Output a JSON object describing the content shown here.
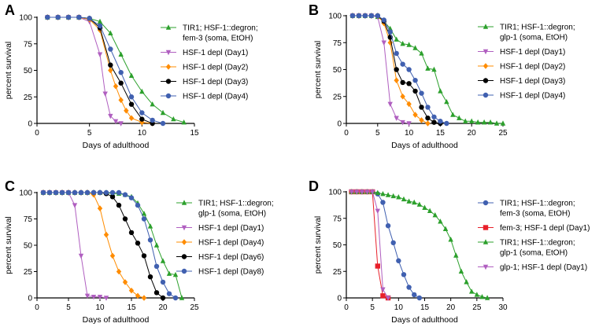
{
  "chart_data": [
    {
      "panel": "A",
      "type": "line",
      "xlabel": "Days of adulthood",
      "ylabel": "percent survival",
      "xlim": [
        0,
        15
      ],
      "ylim": [
        0,
        100
      ],
      "xticks": [
        0,
        5,
        10,
        15
      ],
      "yticks": [
        0,
        25,
        50,
        75,
        100
      ],
      "legend_position": "right",
      "series": [
        {
          "name": "TIR1; HSF-1::degron; fem-3 (soma, EtOH)",
          "legend_lines": [
            "TIR1; HSF-1::degron;",
            "fem-3 (soma, EtOH)"
          ],
          "color": "#2ca02c",
          "marker": "triangle-up",
          "x": [
            1,
            2,
            3,
            4,
            5,
            6,
            7,
            8,
            9,
            10,
            11,
            12,
            13,
            14
          ],
          "y": [
            100,
            100,
            100,
            100,
            99,
            96,
            85,
            65,
            45,
            30,
            18,
            10,
            4,
            1
          ]
        },
        {
          "name": "HSF-1 depl (Day1)",
          "legend_lines": [
            "HSF-1 depl (Day1)"
          ],
          "color": "#b05fc0",
          "marker": "triangle-down",
          "x": [
            1,
            2,
            3,
            4,
            5,
            6,
            6.5,
            7,
            7.5,
            8
          ],
          "y": [
            100,
            100,
            100,
            100,
            96,
            65,
            28,
            7,
            2,
            0
          ]
        },
        {
          "name": "HSF-1 depl (Day2)",
          "legend_lines": [
            "HSF-1 depl (Day2)"
          ],
          "color": "#ff8c00",
          "marker": "diamond",
          "x": [
            1,
            2,
            3,
            4,
            5,
            6,
            7,
            7.5,
            8,
            8.5,
            9,
            10,
            11
          ],
          "y": [
            100,
            100,
            100,
            100,
            98,
            88,
            50,
            35,
            22,
            12,
            5,
            1,
            0
          ]
        },
        {
          "name": "HSF-1 depl (Day3)",
          "legend_lines": [
            "HSF-1 depl (Day3)"
          ],
          "color": "#000000",
          "marker": "circle",
          "x": [
            1,
            2,
            3,
            4,
            5,
            6,
            7,
            8,
            9,
            10,
            11
          ],
          "y": [
            100,
            100,
            100,
            100,
            99,
            90,
            55,
            38,
            18,
            4,
            0
          ]
        },
        {
          "name": "HSF-1 depl (Day4)",
          "legend_lines": [
            "HSF-1 depl (Day4)"
          ],
          "color": "#4060b0",
          "marker": "circle",
          "x": [
            1,
            2,
            3,
            4,
            5,
            6,
            7,
            8,
            9,
            10,
            11,
            12
          ],
          "y": [
            100,
            100,
            100,
            100,
            99,
            92,
            70,
            48,
            25,
            10,
            3,
            0
          ]
        }
      ]
    },
    {
      "panel": "B",
      "type": "line",
      "xlabel": "Days of adulthood",
      "ylabel": "percent survival",
      "xlim": [
        0,
        25
      ],
      "ylim": [
        0,
        100
      ],
      "xticks": [
        0,
        5,
        10,
        15,
        20,
        25
      ],
      "yticks": [
        0,
        25,
        50,
        75,
        100
      ],
      "legend_position": "right",
      "series": [
        {
          "name": "TIR1; HSF-1::degron; glp-1 (soma, EtOH)",
          "legend_lines": [
            "TIR1; HSF-1::degron;",
            "glp-1 (soma, EtOH)"
          ],
          "color": "#2ca02c",
          "marker": "triangle-up",
          "x": [
            1,
            2,
            3,
            4,
            5,
            6,
            7,
            8,
            9,
            10,
            11,
            12,
            13,
            14,
            15,
            16,
            17,
            18,
            19,
            20,
            21,
            22,
            23,
            24,
            25
          ],
          "y": [
            100,
            100,
            100,
            100,
            99,
            95,
            88,
            78,
            74,
            73,
            70,
            65,
            51,
            50,
            30,
            20,
            8,
            5,
            2,
            2,
            1,
            1,
            1,
            0,
            0
          ]
        },
        {
          "name": "HSF-1 depl (Day1)",
          "legend_lines": [
            "HSF-1 depl (Day1)"
          ],
          "color": "#b05fc0",
          "marker": "triangle-down",
          "x": [
            1,
            2,
            3,
            4,
            5,
            6,
            7,
            8,
            9,
            10
          ],
          "y": [
            100,
            100,
            100,
            100,
            99,
            75,
            18,
            5,
            1,
            0
          ]
        },
        {
          "name": "HSF-1 depl (Day2)",
          "legend_lines": [
            "HSF-1 depl (Day2)"
          ],
          "color": "#ff8c00",
          "marker": "diamond",
          "x": [
            1,
            2,
            3,
            4,
            5,
            6,
            7,
            8,
            9,
            10,
            11,
            12,
            13
          ],
          "y": [
            100,
            100,
            100,
            100,
            100,
            93,
            75,
            40,
            25,
            18,
            8,
            3,
            0
          ]
        },
        {
          "name": "HSF-1 depl (Day3)",
          "legend_lines": [
            "HSF-1 depl (Day3)"
          ],
          "color": "#000000",
          "marker": "circle",
          "x": [
            1,
            2,
            3,
            4,
            5,
            6,
            7,
            8,
            9,
            10,
            11,
            12,
            13,
            14,
            15
          ],
          "y": [
            100,
            100,
            100,
            100,
            100,
            95,
            80,
            50,
            38,
            37,
            30,
            15,
            5,
            1,
            0
          ]
        },
        {
          "name": "HSF-1 depl (Day4)",
          "legend_lines": [
            "HSF-1 depl (Day4)"
          ],
          "color": "#4060b0",
          "marker": "circle",
          "x": [
            1,
            2,
            3,
            4,
            5,
            6,
            7,
            8,
            9,
            10,
            11,
            12,
            13,
            14,
            15,
            16
          ],
          "y": [
            100,
            100,
            100,
            100,
            100,
            96,
            85,
            65,
            55,
            50,
            40,
            28,
            15,
            6,
            2,
            0
          ]
        }
      ]
    },
    {
      "panel": "C",
      "type": "line",
      "xlabel": "Days of adulthood",
      "ylabel": "percent survival",
      "xlim": [
        0,
        25
      ],
      "ylim": [
        0,
        100
      ],
      "xticks": [
        0,
        5,
        10,
        15,
        20,
        25
      ],
      "yticks": [
        0,
        25,
        50,
        75,
        100
      ],
      "legend_position": "right",
      "series": [
        {
          "name": "TIR1; HSF-1::degron; glp-1 (soma, EtOH)",
          "legend_lines": [
            "TIR1; HSF-1::degron;",
            "glp-1 (soma, EtOH)"
          ],
          "color": "#2ca02c",
          "marker": "triangle-up",
          "x": [
            1,
            2,
            3,
            4,
            5,
            6,
            7,
            8,
            9,
            10,
            11,
            12,
            13,
            14,
            15,
            16,
            17,
            18,
            19,
            20,
            21,
            22,
            23
          ],
          "y": [
            100,
            100,
            100,
            100,
            100,
            100,
            100,
            100,
            100,
            100,
            100,
            99,
            99,
            98,
            96,
            90,
            80,
            68,
            50,
            35,
            23,
            22,
            0
          ]
        },
        {
          "name": "HSF-1 depl (Day1)",
          "legend_lines": [
            "HSF-1 depl (Day1)"
          ],
          "color": "#b05fc0",
          "marker": "triangle-down",
          "x": [
            1,
            2,
            3,
            4,
            5,
            6,
            7,
            8,
            9,
            10,
            11
          ],
          "y": [
            100,
            100,
            100,
            100,
            100,
            88,
            40,
            2,
            1,
            1,
            0
          ]
        },
        {
          "name": "HSF-1 depl (Day4)",
          "legend_lines": [
            "HSF-1 depl (Day4)"
          ],
          "color": "#ff8c00",
          "marker": "diamond",
          "x": [
            1,
            2,
            3,
            4,
            5,
            6,
            7,
            8,
            9,
            10,
            11,
            12,
            13,
            14,
            15,
            16,
            17
          ],
          "y": [
            100,
            100,
            100,
            100,
            100,
            100,
            100,
            100,
            98,
            85,
            60,
            40,
            25,
            15,
            7,
            2,
            0
          ]
        },
        {
          "name": "HSF-1 depl (Day6)",
          "legend_lines": [
            "HSF-1 depl (Day6)"
          ],
          "color": "#000000",
          "marker": "circle",
          "x": [
            1,
            2,
            3,
            4,
            5,
            6,
            7,
            8,
            9,
            10,
            11,
            12,
            13,
            14,
            15,
            16,
            17,
            18,
            19,
            20
          ],
          "y": [
            100,
            100,
            100,
            100,
            100,
            100,
            100,
            100,
            100,
            100,
            99,
            96,
            88,
            75,
            62,
            52,
            40,
            20,
            5,
            0
          ]
        },
        {
          "name": "HSF-1 depl (Day8)",
          "legend_lines": [
            "HSF-1 depl (Day8)"
          ],
          "color": "#4060b0",
          "marker": "circle",
          "x": [
            1,
            2,
            3,
            4,
            5,
            6,
            7,
            8,
            9,
            10,
            11,
            12,
            13,
            14,
            15,
            16,
            17,
            18,
            19,
            20,
            21,
            22
          ],
          "y": [
            100,
            100,
            100,
            100,
            100,
            100,
            100,
            100,
            100,
            100,
            100,
            100,
            100,
            98,
            95,
            88,
            75,
            55,
            30,
            15,
            4,
            0
          ]
        }
      ]
    },
    {
      "panel": "D",
      "type": "line",
      "xlabel": "Days of adulthood",
      "ylabel": "percent survival",
      "xlim": [
        0,
        30
      ],
      "ylim": [
        0,
        100
      ],
      "xticks": [
        0,
        5,
        10,
        15,
        20,
        25,
        30
      ],
      "yticks": [
        0,
        25,
        50,
        75,
        100
      ],
      "legend_position": "right",
      "series": [
        {
          "name": "TIR1; HSF-1::degron; fem-3 (soma, EtOH)",
          "legend_lines": [
            "TIR1; HSF-1::degron;",
            "fem-3 (soma, EtOH)"
          ],
          "color": "#4060b0",
          "marker": "circle",
          "x": [
            1,
            2,
            3,
            4,
            5,
            6,
            7,
            8,
            9,
            10,
            11,
            12,
            13,
            14
          ],
          "y": [
            100,
            100,
            100,
            100,
            100,
            98,
            90,
            68,
            52,
            35,
            22,
            10,
            3,
            0
          ]
        },
        {
          "name": "fem-3; HSF-1 depl (Day1)",
          "legend_lines": [
            "fem-3; HSF-1 depl (Day1)"
          ],
          "color": "#e8202a",
          "marker": "square",
          "x": [
            1,
            2,
            3,
            4,
            5,
            6,
            7,
            8
          ],
          "y": [
            100,
            100,
            100,
            100,
            100,
            30,
            2,
            0
          ]
        },
        {
          "name": "TIR1; HSF-1::degron; glp-1 (soma, EtOH)",
          "legend_lines": [
            "TIR1; HSF-1::degron;",
            "glp-1 (soma, EtOH)"
          ],
          "color": "#2ca02c",
          "marker": "triangle-up",
          "x": [
            1,
            2,
            3,
            4,
            5,
            6,
            7,
            8,
            9,
            10,
            11,
            12,
            13,
            14,
            15,
            16,
            17,
            18,
            19,
            20,
            21,
            22,
            23,
            24,
            25,
            26,
            27
          ],
          "y": [
            100,
            100,
            100,
            100,
            100,
            99,
            98,
            97,
            96,
            95,
            93,
            91,
            90,
            88,
            85,
            82,
            78,
            72,
            65,
            55,
            40,
            25,
            15,
            6,
            3,
            1,
            0
          ]
        },
        {
          "name": "glp-1; HSF-1 depl (Day1)",
          "legend_lines": [
            "glp-1; HSF-1 depl (Day1)"
          ],
          "color": "#b05fc0",
          "marker": "triangle-down",
          "x": [
            1,
            2,
            3,
            4,
            5,
            6,
            7,
            8
          ],
          "y": [
            100,
            100,
            100,
            100,
            100,
            82,
            8,
            0
          ]
        }
      ]
    }
  ]
}
